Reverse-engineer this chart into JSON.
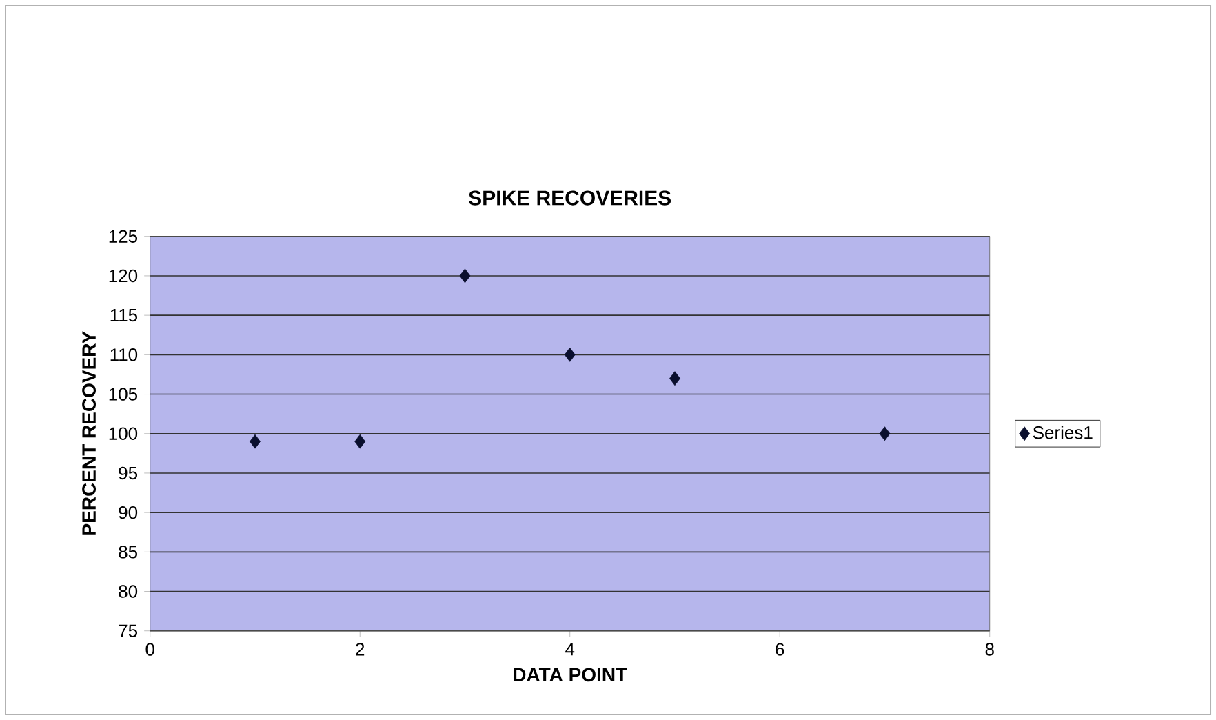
{
  "chart_data": {
    "type": "scatter",
    "title": "SPIKE RECOVERIES",
    "xlabel": "DATA POINT",
    "ylabel": "PERCENT RECOVERY",
    "x": [
      1,
      2,
      3,
      4,
      5,
      7
    ],
    "series": [
      {
        "name": "Series1",
        "color": "#0a0f2e",
        "values": [
          99,
          99,
          120,
          110,
          107,
          100
        ]
      }
    ],
    "xlim": [
      0,
      8
    ],
    "xticks": [
      0,
      2,
      4,
      6,
      8
    ],
    "ylim": [
      75,
      125
    ],
    "yticks": [
      75,
      80,
      85,
      90,
      95,
      100,
      105,
      110,
      115,
      120,
      125
    ],
    "grid": "y",
    "legend": "right",
    "marker": "diamond"
  }
}
